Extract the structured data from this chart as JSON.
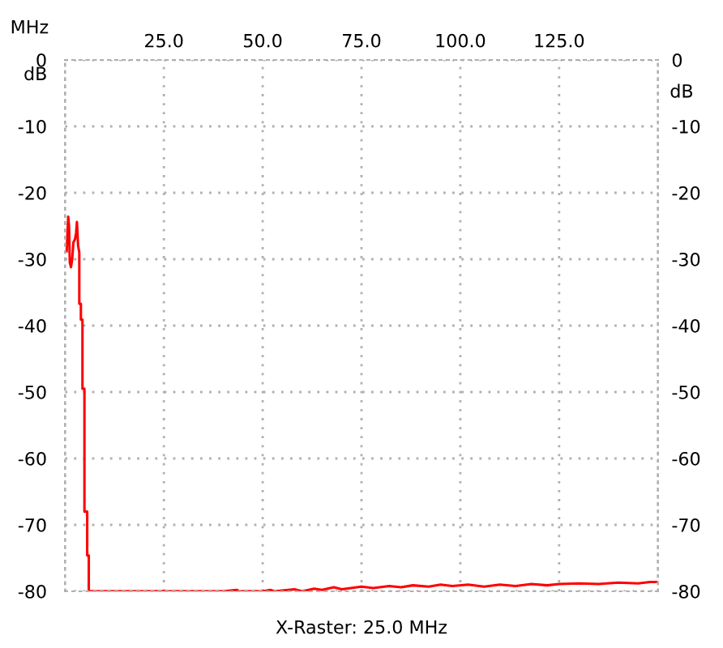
{
  "chart_data": {
    "type": "line",
    "xlabel": "MHz",
    "ylabel": "dB",
    "y2label": "dB",
    "xlim": [
      0,
      150
    ],
    "xticks": [
      {
        "value": 25,
        "label": "25.0"
      },
      {
        "value": 50,
        "label": "50.0"
      },
      {
        "value": 75,
        "label": "75.0"
      },
      {
        "value": 100,
        "label": "100.0"
      },
      {
        "value": 125,
        "label": "125.0"
      }
    ],
    "ylim": [
      -80,
      0
    ],
    "yticks": [
      0,
      -10,
      -20,
      -30,
      -40,
      -50,
      -60,
      -70,
      -80
    ],
    "y2lim": [
      -80,
      0
    ],
    "y2ticks": [
      0,
      -10,
      -20,
      -30,
      -40,
      -50,
      -60,
      -70,
      -80
    ],
    "grid": true,
    "line_style": "solid",
    "marker": "none",
    "annotations": [
      "X-Raster: 25.0 MHz"
    ],
    "series": [
      {
        "color": "#ff0000",
        "x": [
          0.4,
          0.8,
          1.0,
          1.2,
          1.5,
          1.8,
          2.1,
          2.5,
          2.8,
          3.0,
          3.3,
          3.6,
          3.6,
          4.0,
          4.0,
          4.4,
          4.4,
          4.9,
          4.9,
          5.6,
          5.6,
          6.0,
          6.0,
          40,
          43.5,
          44,
          50,
          52,
          53,
          58,
          60,
          63,
          65,
          68,
          70,
          75,
          78,
          82,
          85,
          88,
          92,
          95,
          98,
          102,
          106,
          110,
          114,
          118,
          122,
          125,
          130,
          135,
          140,
          145,
          148,
          150
        ],
        "values": [
          -28.8,
          -23.6,
          -25,
          -30.5,
          -31.2,
          -30,
          -27.5,
          -27,
          -26,
          -24.4,
          -28,
          -29,
          -36.7,
          -36.7,
          -39.1,
          -39.1,
          -49.5,
          -49.5,
          -68,
          -68,
          -74.6,
          -74.6,
          -80,
          -80,
          -79.8,
          -80,
          -80,
          -79.8,
          -80,
          -79.7,
          -80,
          -79.6,
          -79.8,
          -79.4,
          -79.7,
          -79.3,
          -79.5,
          -79.2,
          -79.4,
          -79.1,
          -79.3,
          -79.0,
          -79.2,
          -79.0,
          -79.3,
          -79.0,
          -79.2,
          -78.9,
          -79.1,
          -78.9,
          -78.8,
          -78.9,
          -78.7,
          -78.8,
          -78.6,
          -78.6
        ]
      }
    ]
  }
}
